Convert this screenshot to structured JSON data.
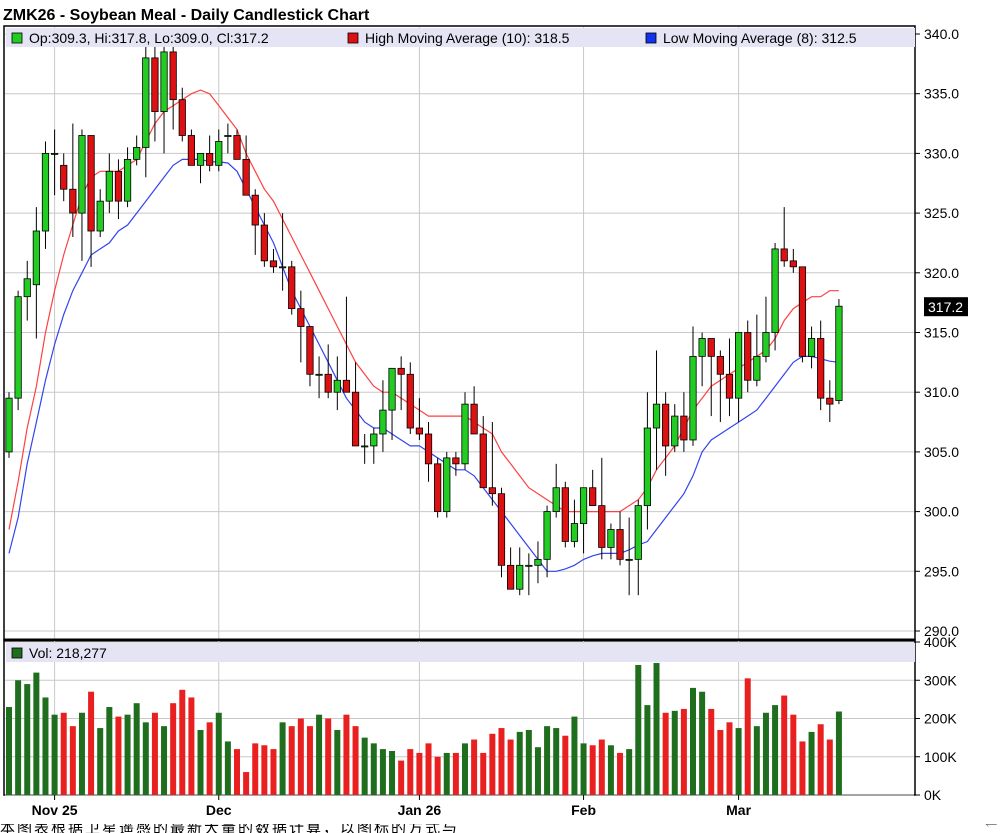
{
  "chart_data": {
    "type": "candlestick",
    "title": "ZMK26 - Soybean Meal - Daily Candlestick Chart",
    "ohlc_label": "Op:309.3, Hi:317.8, Lo:309.0, Cl:317.2",
    "high_ma_label": "High Moving Average (10): 318.5",
    "low_ma_label": "Low Moving Average (8): 312.5",
    "vol_label": "Vol: 218,277",
    "last_price_label": "317.2",
    "last_price": 317.2,
    "ylim": [
      290,
      340
    ],
    "yticks": [
      "340.0",
      "335.0",
      "330.0",
      "325.0",
      "320.0",
      "315.0",
      "310.0",
      "305.0",
      "300.0",
      "295.0",
      "290.0"
    ],
    "ytick_values": [
      340,
      335,
      330,
      325,
      320,
      315,
      310,
      305,
      300,
      295,
      290
    ],
    "vol_ylim": [
      0,
      400000
    ],
    "vol_ticks": [
      "400K",
      "300K",
      "200K",
      "100K",
      "0K"
    ],
    "vol_tick_values": [
      400000,
      300000,
      200000,
      100000,
      0
    ],
    "xticks": [
      "Nov 25",
      "Dec",
      "Jan 26",
      "Feb",
      "Mar"
    ],
    "xtick_bar_index": [
      5,
      23,
      45,
      63,
      80
    ],
    "colors": {
      "up": "#22cc22",
      "down": "#dd1111",
      "vol_up": "#1e6e1e",
      "vol_down": "#e82020",
      "high_ma": "#ff4040",
      "low_ma": "#3344ee",
      "grid": "#c8c8c8",
      "legend_bg": "#e4e4f4"
    },
    "bars": [
      [
        305.0,
        310.0,
        304.5,
        309.5,
        230000
      ],
      [
        309.5,
        318.5,
        308.5,
        318.0,
        300000
      ],
      [
        318.0,
        321.0,
        316.0,
        319.5,
        290000
      ],
      [
        319.0,
        325.5,
        314.5,
        323.5,
        320000
      ],
      [
        323.5,
        331.0,
        322.0,
        330.0,
        255000
      ],
      [
        330.0,
        332.0,
        326.5,
        330.0,
        210000
      ],
      [
        329.0,
        330.0,
        326.0,
        327.0,
        215000
      ],
      [
        327.0,
        332.5,
        323.0,
        325.0,
        180000
      ],
      [
        325.0,
        332.0,
        321.0,
        331.5,
        215000
      ],
      [
        331.5,
        331.5,
        320.5,
        323.5,
        270000
      ],
      [
        323.5,
        327.0,
        323.0,
        326.0,
        175000
      ],
      [
        326.0,
        330.0,
        325.0,
        328.5,
        230000
      ],
      [
        328.5,
        329.5,
        324.5,
        326.0,
        205000
      ],
      [
        326.0,
        330.5,
        325.5,
        329.5,
        210000
      ],
      [
        329.5,
        331.5,
        329.0,
        330.5,
        240000
      ],
      [
        330.5,
        339.0,
        328.0,
        338.0,
        190000
      ],
      [
        338.0,
        339.0,
        331.0,
        333.5,
        215000
      ],
      [
        333.5,
        339.0,
        330.0,
        338.5,
        180000
      ],
      [
        338.5,
        339.5,
        332.0,
        334.5,
        240000
      ],
      [
        334.5,
        335.5,
        331.0,
        331.5,
        275000
      ],
      [
        331.5,
        332.0,
        329.0,
        329.0,
        255000
      ],
      [
        329.0,
        330.0,
        327.5,
        330.0,
        170000
      ],
      [
        330.0,
        331.5,
        328.5,
        329.0,
        190000
      ],
      [
        329.0,
        332.0,
        328.5,
        331.0,
        215000
      ],
      [
        331.5,
        332.5,
        330.0,
        331.5,
        140000
      ],
      [
        331.5,
        332.0,
        329.5,
        329.5,
        120000
      ],
      [
        329.5,
        331.5,
        326.5,
        326.5,
        60000
      ],
      [
        326.5,
        327.0,
        321.5,
        324.0,
        135000
      ],
      [
        324.0,
        325.0,
        320.5,
        321.0,
        130000
      ],
      [
        321.0,
        322.0,
        320.0,
        320.5,
        120000
      ],
      [
        320.5,
        325.0,
        318.5,
        320.5,
        190000
      ],
      [
        320.5,
        321.0,
        316.5,
        317.0,
        180000
      ],
      [
        317.0,
        318.5,
        312.5,
        315.5,
        200000
      ],
      [
        315.5,
        315.5,
        310.5,
        311.5,
        180000
      ],
      [
        311.5,
        313.0,
        309.5,
        311.5,
        210000
      ],
      [
        311.5,
        314.0,
        309.5,
        310.0,
        200000
      ],
      [
        310.0,
        313.0,
        308.5,
        311.0,
        170000
      ],
      [
        311.0,
        318.0,
        310.0,
        310.0,
        210000
      ],
      [
        310.0,
        312.5,
        305.5,
        305.5,
        180000
      ],
      [
        305.5,
        306.5,
        304.0,
        305.5,
        150000
      ],
      [
        305.5,
        307.0,
        304.0,
        306.5,
        135000
      ],
      [
        306.5,
        311.0,
        305.0,
        308.5,
        120000
      ],
      [
        308.5,
        311.5,
        306.0,
        312.0,
        115000
      ],
      [
        312.0,
        313.0,
        308.5,
        311.5,
        90000
      ],
      [
        311.5,
        312.5,
        306.5,
        307.0,
        120000
      ],
      [
        307.0,
        309.5,
        306.0,
        306.5,
        110000
      ],
      [
        306.5,
        307.5,
        302.5,
        304.0,
        135000
      ],
      [
        304.0,
        304.5,
        299.5,
        300.0,
        100000
      ],
      [
        300.0,
        305.0,
        299.5,
        304.5,
        110000
      ],
      [
        304.5,
        305.0,
        303.0,
        304.0,
        110000
      ],
      [
        304.0,
        310.0,
        303.5,
        309.0,
        135000
      ],
      [
        309.0,
        310.5,
        306.5,
        306.5,
        145000
      ],
      [
        306.5,
        308.0,
        302.0,
        302.0,
        110000
      ],
      [
        302.0,
        307.5,
        300.5,
        301.5,
        160000
      ],
      [
        301.5,
        302.0,
        294.5,
        295.5,
        175000
      ],
      [
        295.5,
        297.0,
        293.5,
        293.5,
        145000
      ],
      [
        293.5,
        297.0,
        293.0,
        295.5,
        165000
      ],
      [
        295.5,
        296.5,
        293.0,
        295.5,
        170000
      ],
      [
        295.5,
        297.5,
        294.0,
        296.0,
        125000
      ],
      [
        296.0,
        300.5,
        294.5,
        300.0,
        180000
      ],
      [
        300.0,
        304.0,
        299.5,
        302.0,
        175000
      ],
      [
        302.0,
        302.5,
        297.0,
        297.5,
        155000
      ],
      [
        297.5,
        301.0,
        297.0,
        299.0,
        205000
      ],
      [
        299.0,
        302.0,
        296.5,
        302.0,
        135000
      ],
      [
        302.0,
        303.5,
        300.5,
        300.5,
        130000
      ],
      [
        300.5,
        304.5,
        296.0,
        297.0,
        145000
      ],
      [
        297.0,
        299.0,
        296.0,
        298.5,
        130000
      ],
      [
        298.5,
        300.0,
        295.5,
        296.0,
        110000
      ],
      [
        296.0,
        299.5,
        293.0,
        296.0,
        120000
      ],
      [
        296.0,
        301.0,
        293.0,
        300.5,
        340000
      ],
      [
        300.5,
        310.0,
        298.5,
        307.0,
        235000
      ],
      [
        307.0,
        313.5,
        303.5,
        309.0,
        345000
      ],
      [
        309.0,
        310.0,
        303.0,
        305.5,
        215000
      ],
      [
        305.5,
        309.0,
        305.0,
        308.0,
        220000
      ],
      [
        308.0,
        310.0,
        305.0,
        306.0,
        225000
      ],
      [
        306.0,
        315.5,
        305.5,
        313.0,
        280000
      ],
      [
        313.0,
        315.0,
        310.5,
        314.5,
        270000
      ],
      [
        314.5,
        314.5,
        308.0,
        313.0,
        225000
      ],
      [
        313.0,
        313.5,
        307.5,
        311.5,
        170000
      ],
      [
        311.5,
        314.5,
        308.0,
        309.5,
        190000
      ],
      [
        309.5,
        313.5,
        307.5,
        315.0,
        175000
      ],
      [
        315.0,
        316.0,
        310.0,
        311.0,
        305000
      ],
      [
        311.0,
        316.5,
        310.5,
        313.0,
        180000
      ],
      [
        313.0,
        318.0,
        312.5,
        315.0,
        215000
      ],
      [
        315.0,
        322.5,
        313.5,
        322.0,
        235000
      ],
      [
        322.0,
        325.5,
        320.5,
        321.0,
        260000
      ],
      [
        321.0,
        322.0,
        320.0,
        320.5,
        210000
      ],
      [
        320.5,
        320.5,
        312.5,
        313.0,
        140000
      ],
      [
        313.0,
        315.5,
        312.0,
        314.5,
        165000
      ],
      [
        314.5,
        316.0,
        308.5,
        309.5,
        185000
      ],
      [
        309.5,
        311.0,
        307.5,
        309.0,
        145000
      ],
      [
        309.3,
        317.8,
        309.0,
        317.2,
        218277
      ]
    ],
    "high_ma": [
      298.5,
      302.5,
      307.0,
      310.5,
      315.0,
      318.5,
      321.5,
      324.0,
      326.5,
      328.0,
      328.5,
      328.5,
      328.5,
      329.0,
      329.5,
      331.0,
      332.5,
      333.5,
      334.0,
      334.5,
      335.0,
      335.3,
      335.0,
      334.0,
      333.0,
      332.0,
      330.0,
      328.5,
      327.0,
      326.0,
      324.5,
      323.0,
      321.5,
      320.0,
      318.5,
      317.0,
      315.5,
      314.0,
      312.5,
      311.5,
      310.5,
      310.0,
      310.0,
      309.5,
      309.0,
      308.5,
      308.0,
      308.0,
      308.0,
      308.0,
      308.0,
      307.5,
      307.0,
      306.5,
      305.0,
      304.0,
      303.0,
      302.0,
      301.5,
      301.0,
      300.5,
      300.0,
      300.0,
      300.0,
      300.0,
      300.0,
      300.0,
      300.0,
      300.5,
      301.0,
      302.0,
      303.5,
      304.5,
      305.5,
      307.0,
      308.5,
      309.5,
      310.5,
      311.0,
      311.5,
      312.0,
      312.5,
      313.0,
      313.5,
      314.5,
      316.0,
      317.0,
      317.5,
      318.0,
      318.0,
      318.5,
      318.5
    ],
    "low_ma": [
      296.5,
      299.5,
      304.0,
      307.5,
      311.0,
      314.0,
      316.5,
      318.5,
      320.0,
      321.5,
      322.0,
      322.5,
      323.5,
      324.0,
      325.0,
      326.0,
      327.0,
      328.0,
      329.0,
      329.5,
      329.5,
      329.5,
      329.3,
      329.3,
      329.2,
      328.5,
      327.0,
      325.5,
      324.0,
      322.5,
      320.5,
      318.5,
      317.0,
      315.5,
      314.0,
      312.5,
      311.0,
      309.5,
      308.5,
      307.5,
      307.0,
      307.0,
      306.5,
      306.0,
      305.5,
      305.5,
      305.0,
      304.5,
      304.0,
      303.5,
      303.5,
      303.0,
      302.0,
      301.0,
      300.0,
      299.0,
      298.0,
      297.0,
      296.0,
      295.0,
      295.0,
      295.2,
      295.5,
      296.0,
      296.3,
      296.5,
      296.5,
      296.5,
      296.8,
      297.2,
      297.5,
      298.5,
      299.5,
      300.5,
      301.5,
      303.0,
      305.0,
      306.0,
      306.5,
      307.0,
      307.5,
      308.0,
      308.5,
      309.5,
      310.5,
      311.5,
      312.5,
      313.0,
      313.0,
      312.8,
      312.6,
      312.5
    ]
  },
  "footer_text": "本图表根据卫星遥感的最新大量的数据计算，以图标的方式与"
}
